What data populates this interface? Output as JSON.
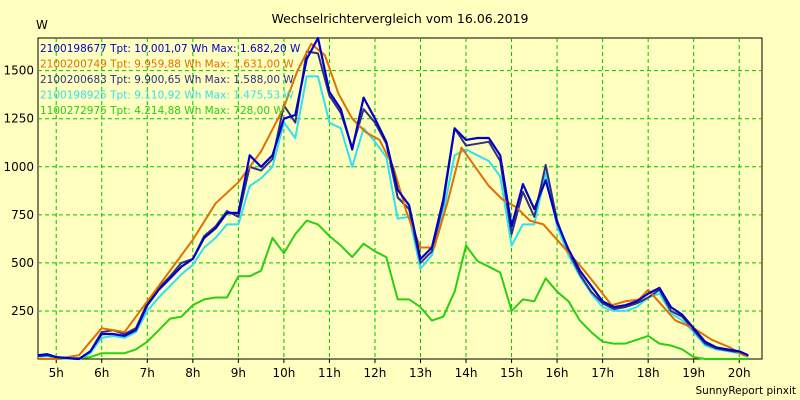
{
  "chart_data": {
    "type": "line",
    "title": "Wechselrichtervergleich vom 16.06.2019",
    "ylabel": "W",
    "footer": "SunnyReport pinxit",
    "ylim": [
      0,
      1670
    ],
    "xlim": [
      4.6,
      20.5
    ],
    "x_ticks": [
      {
        "v": 5,
        "label": "5h"
      },
      {
        "v": 6,
        "label": "6h"
      },
      {
        "v": 7,
        "label": "7h"
      },
      {
        "v": 8,
        "label": "8h"
      },
      {
        "v": 9,
        "label": "9h"
      },
      {
        "v": 10,
        "label": "10h"
      },
      {
        "v": 11,
        "label": "11h"
      },
      {
        "v": 12,
        "label": "12h"
      },
      {
        "v": 13,
        "label": "13h"
      },
      {
        "v": 14,
        "label": "14h"
      },
      {
        "v": 15,
        "label": "15h"
      },
      {
        "v": 16,
        "label": "16h"
      },
      {
        "v": 17,
        "label": "17h"
      },
      {
        "v": 18,
        "label": "18h"
      },
      {
        "v": 19,
        "label": "19h"
      },
      {
        "v": 20,
        "label": "20h"
      }
    ],
    "y_ticks": [
      250,
      500,
      750,
      1000,
      1250,
      1500
    ],
    "grid": true,
    "legend_position": "top-left",
    "series": [
      {
        "name": "2100198677 Tpt: 10.001,07 Wh Max: 1.682,20 W",
        "color": "#0000c8",
        "x": [
          4.6,
          4.8,
          5.0,
          5.5,
          5.75,
          6.0,
          6.25,
          6.5,
          6.75,
          7.0,
          7.25,
          7.5,
          7.75,
          8.0,
          8.25,
          8.5,
          8.75,
          9.0,
          9.25,
          9.5,
          9.75,
          10.0,
          10.25,
          10.5,
          10.75,
          11.0,
          11.25,
          11.5,
          11.75,
          12.0,
          12.25,
          12.5,
          12.75,
          13.0,
          13.25,
          13.5,
          13.75,
          14.0,
          14.25,
          14.5,
          14.75,
          15.0,
          15.25,
          15.5,
          15.75,
          16.0,
          16.25,
          16.5,
          16.75,
          17.0,
          17.25,
          17.5,
          17.75,
          18.0,
          18.25,
          18.5,
          18.75,
          19.0,
          19.25,
          19.5,
          19.75,
          20.0,
          20.2
        ],
        "y": [
          20,
          25,
          10,
          0,
          40,
          130,
          130,
          120,
          150,
          280,
          360,
          420,
          480,
          520,
          630,
          680,
          760,
          760,
          1060,
          1000,
          1060,
          1250,
          1270,
          1560,
          1670,
          1390,
          1300,
          1090,
          1360,
          1250,
          1130,
          880,
          800,
          520,
          580,
          830,
          1200,
          1140,
          1150,
          1150,
          1060,
          690,
          910,
          780,
          930,
          710,
          570,
          460,
          380,
          300,
          270,
          280,
          300,
          340,
          370,
          270,
          230,
          160,
          90,
          60,
          50,
          40,
          20
        ]
      },
      {
        "name": "2100200749 Tpt: 9.959,88 Wh Max: 1.631,00 W",
        "color": "#e07000",
        "x": [
          4.6,
          5.0,
          5.5,
          6.0,
          6.5,
          7.0,
          7.5,
          8.0,
          8.5,
          9.0,
          9.5,
          10.0,
          10.3,
          10.6,
          10.9,
          11.2,
          11.5,
          11.8,
          12.1,
          12.4,
          12.7,
          13.0,
          13.3,
          13.6,
          13.9,
          14.2,
          14.5,
          14.8,
          15.1,
          15.4,
          15.7,
          16.0,
          16.3,
          16.6,
          16.9,
          17.2,
          17.5,
          17.8,
          18.0,
          18.3,
          18.6,
          19.0,
          19.4,
          19.8,
          20.1,
          20.2
        ],
        "y": [
          0,
          0,
          20,
          160,
          140,
          300,
          460,
          620,
          810,
          920,
          1080,
          1310,
          1500,
          1640,
          1580,
          1380,
          1250,
          1180,
          1140,
          1000,
          760,
          580,
          580,
          820,
          1100,
          1000,
          900,
          830,
          790,
          720,
          700,
          620,
          540,
          460,
          370,
          280,
          300,
          310,
          360,
          280,
          200,
          160,
          100,
          60,
          20,
          15
        ]
      },
      {
        "name": "2100200683 Tpt: 9.900,65 Wh Max: 1.588,00 W",
        "color": "#303080",
        "x": [
          4.6,
          4.8,
          5.0,
          5.5,
          5.75,
          6.0,
          6.25,
          6.5,
          6.75,
          7.0,
          7.25,
          7.5,
          7.75,
          8.0,
          8.25,
          8.5,
          8.75,
          9.0,
          9.25,
          9.5,
          9.75,
          10.0,
          10.25,
          10.5,
          10.75,
          11.0,
          11.25,
          11.5,
          11.75,
          12.0,
          12.25,
          12.5,
          12.75,
          13.0,
          13.25,
          13.5,
          13.75,
          14.0,
          14.25,
          14.5,
          14.75,
          15.0,
          15.25,
          15.5,
          15.75,
          16.0,
          16.25,
          16.5,
          16.75,
          17.0,
          17.25,
          17.5,
          17.75,
          18.0,
          18.25,
          18.5,
          18.75,
          19.0,
          19.25,
          19.5,
          19.75,
          20.0,
          20.2
        ],
        "y": [
          15,
          20,
          10,
          0,
          40,
          140,
          150,
          130,
          160,
          290,
          370,
          430,
          500,
          520,
          640,
          690,
          770,
          740,
          1000,
          980,
          1040,
          1320,
          1230,
          1600,
          1590,
          1370,
          1280,
          1100,
          1300,
          1230,
          1120,
          840,
          780,
          500,
          560,
          810,
          1200,
          1110,
          1120,
          1130,
          1030,
          650,
          870,
          740,
          1010,
          720,
          560,
          440,
          350,
          290,
          260,
          270,
          290,
          320,
          360,
          250,
          220,
          150,
          80,
          55,
          45,
          35,
          15
        ]
      },
      {
        "name": "2100198925 Tpt: 9.110,92 Wh Max: 1.475,53 W",
        "color": "#30e0f0",
        "x": [
          4.6,
          4.8,
          5.0,
          5.5,
          5.75,
          6.0,
          6.25,
          6.5,
          6.75,
          7.0,
          7.25,
          7.5,
          7.75,
          8.0,
          8.25,
          8.5,
          8.75,
          9.0,
          9.25,
          9.5,
          9.75,
          10.0,
          10.25,
          10.5,
          10.75,
          11.0,
          11.25,
          11.5,
          11.75,
          12.0,
          12.25,
          12.5,
          12.75,
          13.0,
          13.25,
          13.5,
          13.75,
          14.0,
          14.25,
          14.5,
          14.75,
          15.0,
          15.25,
          15.5,
          15.75,
          16.0,
          16.25,
          16.5,
          16.75,
          17.0,
          17.25,
          17.5,
          17.75,
          18.0,
          18.25,
          18.5,
          18.75,
          19.0,
          19.25,
          19.5,
          19.75,
          20.0,
          20.2
        ],
        "y": [
          10,
          15,
          5,
          0,
          30,
          110,
          120,
          110,
          140,
          250,
          320,
          380,
          440,
          490,
          580,
          630,
          700,
          700,
          900,
          940,
          1000,
          1230,
          1150,
          1470,
          1470,
          1230,
          1200,
          1000,
          1200,
          1130,
          1050,
          730,
          740,
          470,
          540,
          760,
          1060,
          1090,
          1060,
          1030,
          950,
          590,
          700,
          700,
          970,
          690,
          540,
          430,
          340,
          270,
          250,
          250,
          270,
          320,
          340,
          240,
          200,
          140,
          70,
          50,
          40,
          30,
          10
        ]
      },
      {
        "name": "1100272975 Tpt: 4.214,88 Wh Max: 728,00 W",
        "color": "#28d010",
        "x": [
          4.6,
          5.0,
          5.5,
          5.75,
          6.0,
          6.25,
          6.5,
          6.75,
          7.0,
          7.25,
          7.5,
          7.75,
          8.0,
          8.25,
          8.5,
          8.75,
          9.0,
          9.25,
          9.5,
          9.75,
          10.0,
          10.25,
          10.5,
          10.75,
          11.0,
          11.25,
          11.5,
          11.75,
          12.0,
          12.25,
          12.5,
          12.75,
          13.0,
          13.25,
          13.5,
          13.75,
          14.0,
          14.25,
          14.5,
          14.75,
          15.0,
          15.25,
          15.5,
          15.75,
          16.0,
          16.25,
          16.5,
          16.75,
          17.0,
          17.25,
          17.5,
          17.75,
          18.0,
          18.25,
          18.5,
          18.75,
          19.0,
          19.25,
          19.5,
          19.75,
          20.0,
          20.2
        ],
        "y": [
          0,
          0,
          5,
          10,
          30,
          30,
          30,
          50,
          90,
          150,
          210,
          220,
          280,
          310,
          320,
          320,
          430,
          430,
          460,
          630,
          550,
          650,
          720,
          700,
          640,
          590,
          530,
          600,
          560,
          530,
          310,
          310,
          270,
          200,
          220,
          350,
          590,
          510,
          480,
          450,
          250,
          310,
          300,
          420,
          350,
          300,
          200,
          140,
          90,
          80,
          80,
          100,
          120,
          80,
          70,
          50,
          10,
          0,
          0,
          0,
          0,
          0
        ]
      }
    ]
  }
}
